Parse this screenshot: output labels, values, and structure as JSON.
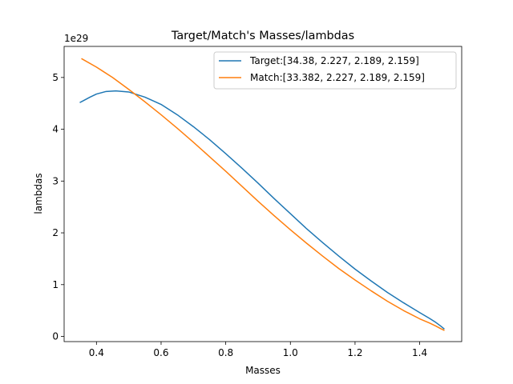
{
  "chart_data": {
    "type": "line",
    "title": "Target/Match's Masses/lambdas",
    "xlabel": "Masses",
    "ylabel": "lambdas",
    "y_offset_label": "1e29",
    "y_multiplier": 1e+29,
    "xlim": [
      0.3,
      1.53
    ],
    "ylim": [
      -0.1,
      5.6
    ],
    "xticks": [
      0.4,
      0.6,
      0.8,
      1.0,
      1.2,
      1.4
    ],
    "xtick_labels": [
      "0.4",
      "0.6",
      "0.8",
      "1.0",
      "1.2",
      "1.4"
    ],
    "yticks": [
      0,
      1,
      2,
      3,
      4,
      5
    ],
    "ytick_labels": [
      "0",
      "1",
      "2",
      "3",
      "4",
      "5"
    ],
    "grid": false,
    "legend_position": "top-right",
    "series": [
      {
        "name": "Target:[34.38, 2.227, 2.189, 2.159]",
        "color": "#1f77b4",
        "x": [
          0.35,
          0.38,
          0.4,
          0.43,
          0.46,
          0.5,
          0.55,
          0.6,
          0.65,
          0.7,
          0.75,
          0.8,
          0.85,
          0.9,
          0.95,
          1.0,
          1.05,
          1.1,
          1.15,
          1.2,
          1.25,
          1.3,
          1.35,
          1.4,
          1.43,
          1.45,
          1.465,
          1.475
        ],
        "y": [
          4.52,
          4.62,
          4.68,
          4.73,
          4.74,
          4.72,
          4.62,
          4.48,
          4.28,
          4.05,
          3.8,
          3.53,
          3.25,
          2.96,
          2.66,
          2.37,
          2.08,
          1.81,
          1.55,
          1.3,
          1.07,
          0.85,
          0.65,
          0.46,
          0.35,
          0.27,
          0.2,
          0.15
        ]
      },
      {
        "name": "Match:[33.382, 2.227, 2.189, 2.159]",
        "color": "#ff7f0e",
        "x": [
          0.355,
          0.4,
          0.45,
          0.5,
          0.55,
          0.6,
          0.65,
          0.7,
          0.75,
          0.8,
          0.85,
          0.9,
          0.95,
          1.0,
          1.05,
          1.1,
          1.15,
          1.2,
          1.25,
          1.3,
          1.35,
          1.4,
          1.43,
          1.45,
          1.465,
          1.475
        ],
        "y": [
          5.36,
          5.2,
          5.0,
          4.77,
          4.53,
          4.28,
          4.02,
          3.75,
          3.47,
          3.19,
          2.9,
          2.61,
          2.33,
          2.06,
          1.8,
          1.55,
          1.31,
          1.09,
          0.88,
          0.68,
          0.5,
          0.34,
          0.26,
          0.2,
          0.15,
          0.12
        ]
      }
    ]
  }
}
